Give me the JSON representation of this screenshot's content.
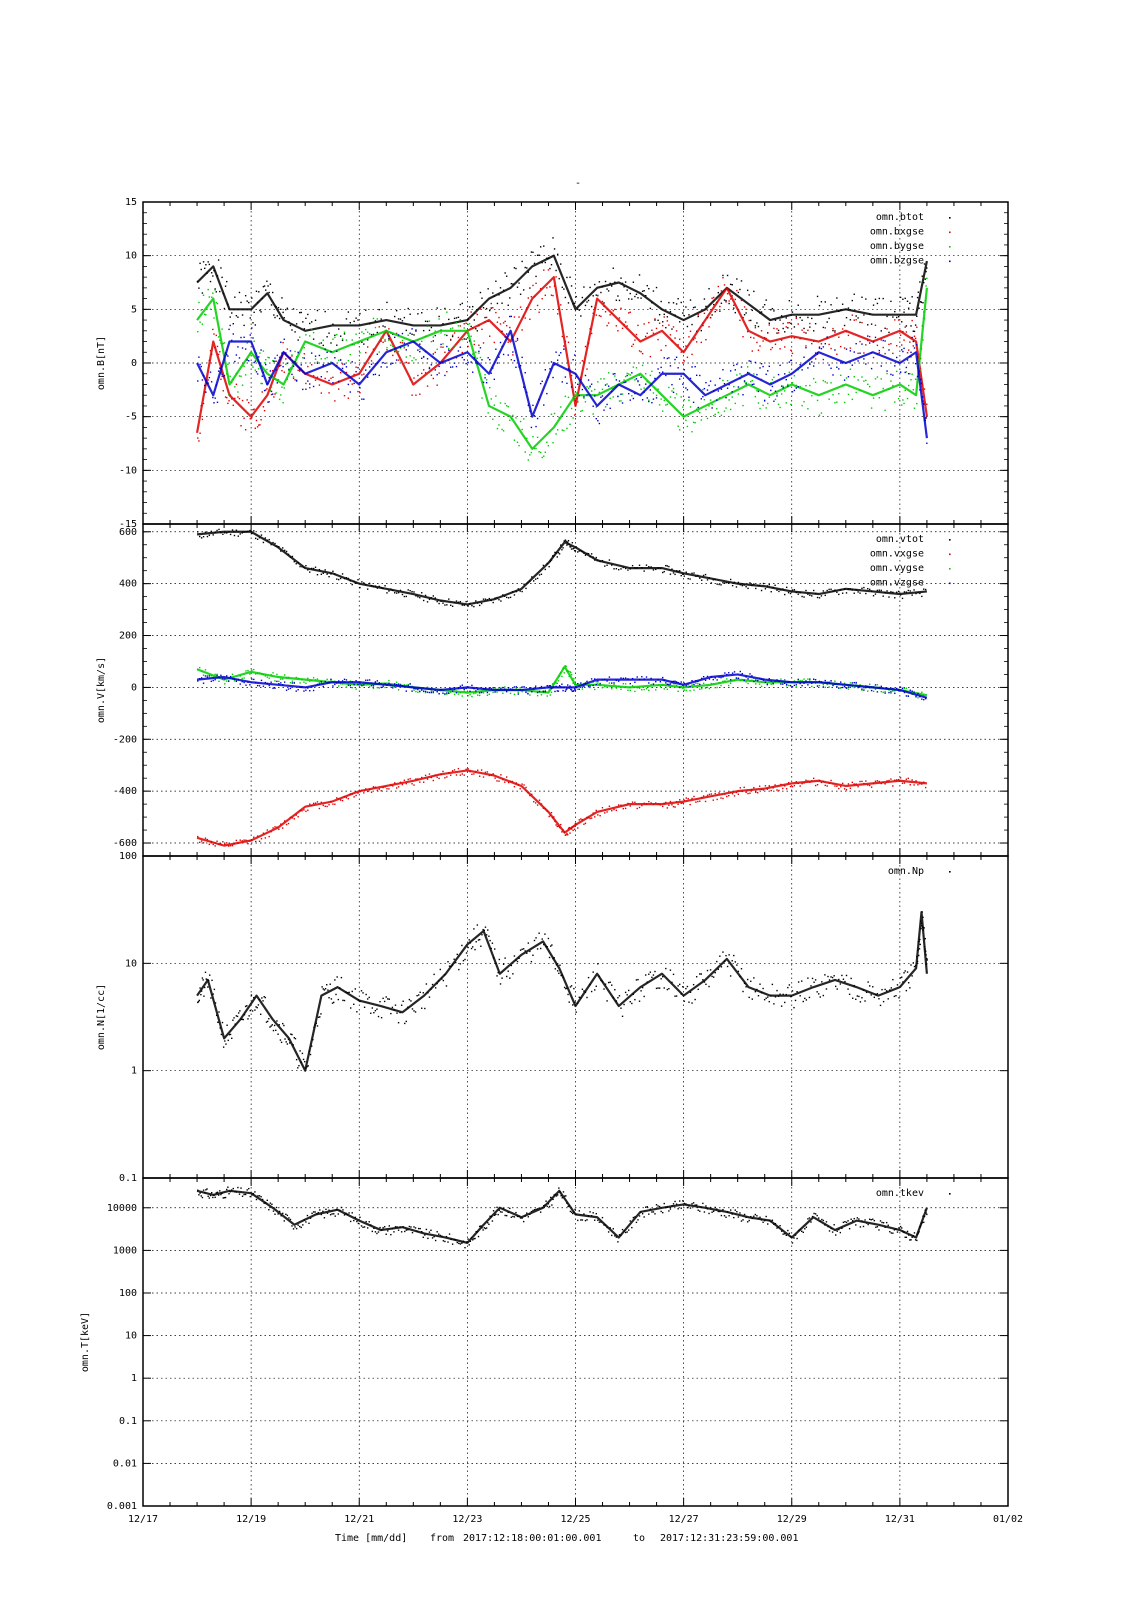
{
  "title": "-",
  "footer": {
    "time_label": "Time [mm/dd]",
    "from_label": "from",
    "start": "2017:12:18:00:01:00.001",
    "to_label": "to",
    "end": "2017:12:31:23:59:00.001"
  },
  "x_ticks": [
    "12/17",
    "12/19",
    "12/21",
    "12/23",
    "12/25",
    "12/27",
    "12/29",
    "12/31",
    "01/02"
  ],
  "colors": {
    "black": "#000000",
    "red": "#dd0000",
    "green": "#00cc00",
    "blue": "#0000cc"
  },
  "chart_data": [
    {
      "type": "scatter",
      "ylabel": "omn.B[nT]",
      "ylim": [
        -15,
        15
      ],
      "scale": "linear",
      "xlim": [
        "12/17",
        "01/02"
      ],
      "yticks": [
        "15",
        "10",
        "5",
        "0",
        "-5",
        "-10",
        "-15"
      ],
      "legend": "top-right",
      "series": [
        {
          "name": "omn.btot",
          "color": "black",
          "x": [
            "12/18",
            "12/18.3",
            "12/18.6",
            "12/19",
            "12/19.3",
            "12/19.6",
            "12/20",
            "12/20.5",
            "12/21",
            "12/21.5",
            "12/22",
            "12/22.5",
            "12/23",
            "12/23.4",
            "12/23.8",
            "12/24.2",
            "12/24.6",
            "12/25",
            "12/25.4",
            "12/25.8",
            "12/26.2",
            "12/26.6",
            "12/27",
            "12/27.4",
            "12/27.8",
            "12/28.2",
            "12/28.6",
            "12/29",
            "12/29.5",
            "12/30",
            "12/30.5",
            "12/31",
            "12/31.3",
            "12/31.5"
          ],
          "y": [
            7.5,
            9,
            5,
            5,
            6.5,
            4,
            3,
            3.5,
            3.5,
            4,
            3.5,
            3.5,
            4,
            6,
            7,
            9,
            10,
            5,
            7,
            7.5,
            6.5,
            5,
            4,
            5,
            7,
            5.5,
            4,
            4.5,
            4.5,
            5,
            4.5,
            4.5,
            4.5,
            9.5
          ]
        },
        {
          "name": "omn.bxgse",
          "color": "red",
          "x": [
            "12/18",
            "12/18.3",
            "12/18.6",
            "12/19",
            "12/19.3",
            "12/19.6",
            "12/20",
            "12/20.5",
            "12/21",
            "12/21.5",
            "12/22",
            "12/22.5",
            "12/23",
            "12/23.4",
            "12/23.8",
            "12/24.2",
            "12/24.6",
            "12/25",
            "12/25.4",
            "12/25.8",
            "12/26.2",
            "12/26.6",
            "12/27",
            "12/27.4",
            "12/27.8",
            "12/28.2",
            "12/28.6",
            "12/29",
            "12/29.5",
            "12/30",
            "12/30.5",
            "12/31",
            "12/31.3",
            "12/31.5"
          ],
          "y": [
            -6.5,
            2,
            -3,
            -5,
            -3,
            1,
            -1,
            -2,
            -1,
            3,
            -2,
            0,
            3,
            4,
            2,
            6,
            8,
            -4,
            6,
            4,
            2,
            3,
            1,
            4,
            7,
            3,
            2,
            2.5,
            2,
            3,
            2,
            3,
            2,
            -5
          ]
        },
        {
          "name": "omn.bygse",
          "color": "green",
          "x": [
            "12/18",
            "12/18.3",
            "12/18.6",
            "12/19",
            "12/19.3",
            "12/19.6",
            "12/20",
            "12/20.5",
            "12/21",
            "12/21.5",
            "12/22",
            "12/22.5",
            "12/23",
            "12/23.4",
            "12/23.8",
            "12/24.2",
            "12/24.6",
            "12/25",
            "12/25.4",
            "12/25.8",
            "12/26.2",
            "12/26.6",
            "12/27",
            "12/27.4",
            "12/27.8",
            "12/28.2",
            "12/28.6",
            "12/29",
            "12/29.5",
            "12/30",
            "12/30.5",
            "12/31",
            "12/31.3",
            "12/31.5"
          ],
          "y": [
            4,
            6,
            -2,
            1,
            -1,
            -2,
            2,
            1,
            2,
            3,
            2,
            3,
            3,
            -4,
            -5,
            -8,
            -6,
            -3,
            -3,
            -2,
            -1,
            -3,
            -5,
            -4,
            -3,
            -2,
            -3,
            -2,
            -3,
            -2,
            -3,
            -2,
            -3,
            7
          ]
        },
        {
          "name": "omn.bzgse",
          "color": "blue",
          "x": [
            "12/18",
            "12/18.3",
            "12/18.6",
            "12/19",
            "12/19.3",
            "12/19.6",
            "12/20",
            "12/20.5",
            "12/21",
            "12/21.5",
            "12/22",
            "12/22.5",
            "12/23",
            "12/23.4",
            "12/23.8",
            "12/24.2",
            "12/24.6",
            "12/25",
            "12/25.4",
            "12/25.8",
            "12/26.2",
            "12/26.6",
            "12/27",
            "12/27.4",
            "12/27.8",
            "12/28.2",
            "12/28.6",
            "12/29",
            "12/29.5",
            "12/30",
            "12/30.5",
            "12/31",
            "12/31.3",
            "12/31.5"
          ],
          "y": [
            0,
            -3,
            2,
            2,
            -2,
            1,
            -1,
            0,
            -2,
            1,
            2,
            0,
            1,
            -1,
            3,
            -5,
            0,
            -1,
            -4,
            -2,
            -3,
            -1,
            -1,
            -3,
            -2,
            -1,
            -2,
            -1,
            1,
            0,
            1,
            0,
            1,
            -7
          ]
        }
      ]
    },
    {
      "type": "scatter",
      "ylabel": "omn.V[km/s]",
      "ylim": [
        -650,
        630
      ],
      "scale": "linear",
      "xlim": [
        "12/17",
        "01/02"
      ],
      "yticks": [
        "600",
        "400",
        "200",
        "0",
        "-200",
        "-400",
        "-600"
      ],
      "legend": "top-right",
      "series": [
        {
          "name": "omn.vtot",
          "color": "black",
          "x": [
            "12/18",
            "12/18.5",
            "12/19",
            "12/19.5",
            "12/20",
            "12/20.5",
            "12/21",
            "12/21.5",
            "12/22",
            "12/22.5",
            "12/23",
            "12/23.5",
            "12/24",
            "12/24.5",
            "12/24.8",
            "12/25",
            "12/25.4",
            "12/26",
            "12/26.6",
            "12/27",
            "12/27.5",
            "12/28",
            "12/28.5",
            "12/29",
            "12/29.5",
            "12/30",
            "12/30.5",
            "12/31",
            "12/31.5"
          ],
          "y": [
            590,
            600,
            600,
            540,
            460,
            440,
            400,
            380,
            360,
            335,
            320,
            340,
            380,
            480,
            560,
            540,
            490,
            460,
            460,
            440,
            420,
            400,
            390,
            370,
            360,
            380,
            370,
            360,
            370
          ]
        },
        {
          "name": "omn.vxgse",
          "color": "red",
          "x": [
            "12/18",
            "12/18.5",
            "12/19",
            "12/19.5",
            "12/20",
            "12/20.5",
            "12/21",
            "12/21.5",
            "12/22",
            "12/22.5",
            "12/23",
            "12/23.5",
            "12/24",
            "12/24.5",
            "12/24.8",
            "12/25",
            "12/25.4",
            "12/26",
            "12/26.6",
            "12/27",
            "12/27.5",
            "12/28",
            "12/28.5",
            "12/29",
            "12/29.5",
            "12/30",
            "12/30.5",
            "12/31",
            "12/31.5"
          ],
          "y": [
            -580,
            -610,
            -590,
            -540,
            -460,
            -440,
            -400,
            -380,
            -360,
            -335,
            -320,
            -340,
            -380,
            -480,
            -560,
            -530,
            -480,
            -450,
            -450,
            -440,
            -420,
            -400,
            -390,
            -370,
            -360,
            -380,
            -370,
            -360,
            -370
          ]
        },
        {
          "name": "omn.vygse",
          "color": "green",
          "x": [
            "12/18",
            "12/18.5",
            "12/19",
            "12/19.5",
            "12/20",
            "12/20.5",
            "12/21",
            "12/21.5",
            "12/22",
            "12/22.5",
            "12/23",
            "12/23.5",
            "12/24",
            "12/24.5",
            "12/24.8",
            "12/25",
            "12/25.4",
            "12/26",
            "12/26.6",
            "12/27",
            "12/27.5",
            "12/28",
            "12/28.5",
            "12/29",
            "12/29.5",
            "12/30",
            "12/30.5",
            "12/31",
            "12/31.5"
          ],
          "y": [
            70,
            30,
            60,
            40,
            30,
            20,
            10,
            15,
            0,
            -10,
            -20,
            -10,
            -10,
            -20,
            80,
            10,
            10,
            0,
            10,
            0,
            10,
            30,
            20,
            20,
            20,
            10,
            0,
            -10,
            -30
          ]
        },
        {
          "name": "omn.vzgse",
          "color": "blue",
          "x": [
            "12/18",
            "12/18.5",
            "12/19",
            "12/19.5",
            "12/20",
            "12/20.5",
            "12/21",
            "12/21.5",
            "12/22",
            "12/22.5",
            "12/23",
            "12/23.5",
            "12/24",
            "12/24.5",
            "12/24.8",
            "12/25",
            "12/25.4",
            "12/26",
            "12/26.6",
            "12/27",
            "12/27.5",
            "12/28",
            "12/28.5",
            "12/29",
            "12/29.5",
            "12/30",
            "12/30.5",
            "12/31",
            "12/31.5"
          ],
          "y": [
            30,
            40,
            20,
            10,
            0,
            20,
            20,
            10,
            0,
            -10,
            0,
            -10,
            -10,
            0,
            0,
            0,
            30,
            30,
            30,
            10,
            40,
            50,
            30,
            20,
            20,
            10,
            0,
            -10,
            -40
          ]
        }
      ]
    },
    {
      "type": "scatter",
      "ylabel": "omn.N[1/cc]",
      "ylim": [
        0.1,
        100
      ],
      "scale": "log",
      "xlim": [
        "12/17",
        "01/02"
      ],
      "yticks": [
        "100",
        "10",
        "1",
        "0.1"
      ],
      "legend": "top-right",
      "series": [
        {
          "name": "omn.Np",
          "color": "black",
          "x": [
            "12/18",
            "12/18.2",
            "12/18.5",
            "12/18.8",
            "12/19.1",
            "12/19.4",
            "12/19.7",
            "12/20",
            "12/20.3",
            "12/20.6",
            "12/21",
            "12/21.4",
            "12/21.8",
            "12/22.2",
            "12/22.6",
            "12/23",
            "12/23.3",
            "12/23.6",
            "12/24",
            "12/24.4",
            "12/24.7",
            "12/25",
            "12/25.4",
            "12/25.8",
            "12/26.2",
            "12/26.6",
            "12/27",
            "12/27.4",
            "12/27.8",
            "12/28.2",
            "12/28.6",
            "12/29",
            "12/29.4",
            "12/29.8",
            "12/30.2",
            "12/30.6",
            "12/31",
            "12/31.3",
            "12/31.4",
            "12/31.5"
          ],
          "y": [
            5,
            7,
            2,
            3,
            5,
            3,
            2,
            1,
            5,
            6,
            4.5,
            4,
            3.5,
            5,
            8,
            15,
            20,
            8,
            12,
            16,
            9,
            4,
            8,
            4,
            6,
            8,
            5,
            7,
            11,
            6,
            5,
            5,
            6,
            7,
            6,
            5,
            6,
            9,
            30,
            8
          ]
        }
      ]
    },
    {
      "type": "scatter",
      "ylabel": "omn.T[keV]",
      "ylim": [
        0.001,
        50000
      ],
      "scale": "log",
      "xlim": [
        "12/17",
        "01/02"
      ],
      "yticks": [
        "10000",
        "1000",
        "100",
        "10",
        "1",
        "0.1",
        "0.01",
        "0.001"
      ],
      "legend": "top-right",
      "series": [
        {
          "name": "omn.tkev",
          "color": "black",
          "x": [
            "12/18",
            "12/18.3",
            "12/18.6",
            "12/19",
            "12/19.4",
            "12/19.8",
            "12/20.2",
            "12/20.6",
            "12/21",
            "12/21.4",
            "12/21.8",
            "12/22.2",
            "12/22.6",
            "12/23",
            "12/23.3",
            "12/23.6",
            "12/24",
            "12/24.4",
            "12/24.7",
            "12/25",
            "12/25.4",
            "12/25.8",
            "12/26.2",
            "12/26.6",
            "12/27",
            "12/27.4",
            "12/27.8",
            "12/28.2",
            "12/28.6",
            "12/29",
            "12/29.4",
            "12/29.8",
            "12/30.2",
            "12/30.6",
            "12/31",
            "12/31.3",
            "12/31.5"
          ],
          "y": [
            25000,
            20000,
            25000,
            22000,
            10000,
            4000,
            7000,
            9000,
            5000,
            3000,
            3500,
            2500,
            2000,
            1500,
            4000,
            10000,
            6000,
            10000,
            25000,
            7000,
            6000,
            2000,
            8000,
            10000,
            12000,
            10000,
            8000,
            6000,
            5000,
            2000,
            6000,
            3000,
            5000,
            4000,
            3000,
            2000,
            10000
          ]
        }
      ]
    }
  ]
}
